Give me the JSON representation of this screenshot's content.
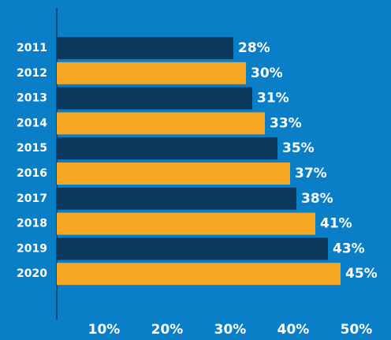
{
  "chart_data": {
    "type": "barh",
    "categories": [
      "2011",
      "2012",
      "2013",
      "2014",
      "2015",
      "2016",
      "2017",
      "2018",
      "2019",
      "2020"
    ],
    "values": [
      28,
      30,
      31,
      33,
      35,
      37,
      38,
      41,
      43,
      45
    ],
    "value_labels": [
      "28%",
      "30%",
      "31%",
      "33%",
      "35%",
      "37%",
      "38%",
      "41%",
      "43%",
      "45%"
    ],
    "colors": [
      "#0b3a5e",
      "#f6a623",
      "#0b3a5e",
      "#f6a623",
      "#0b3a5e",
      "#f6a623",
      "#0b3a5e",
      "#f6a623",
      "#0b3a5e",
      "#f6a623"
    ],
    "xlim": [
      0,
      50
    ],
    "xticks": [
      {
        "value": 10,
        "label": "10%"
      },
      {
        "value": 20,
        "label": "20%"
      },
      {
        "value": 30,
        "label": "30%"
      },
      {
        "value": 40,
        "label": "40%"
      },
      {
        "value": 50,
        "label": "50%"
      }
    ],
    "background": "#0a7ec6"
  }
}
